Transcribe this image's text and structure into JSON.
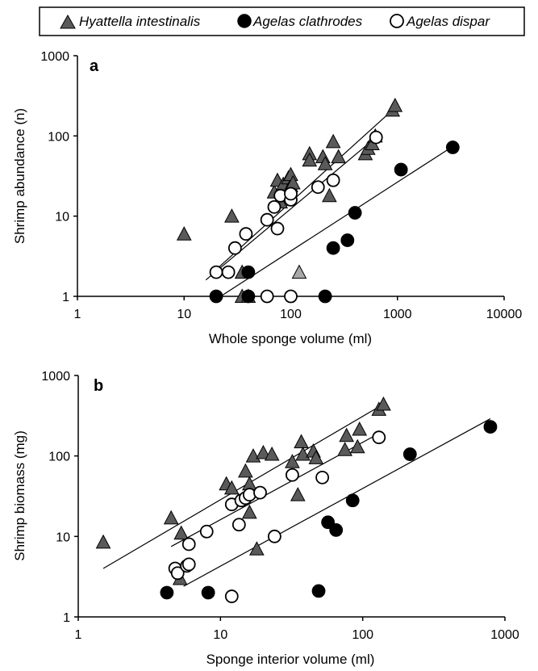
{
  "legend": [
    {
      "name": "Hyattella intestinalis",
      "marker": "triangle",
      "fill": "#5a5a5a"
    },
    {
      "name": "Agelas clathrodes",
      "marker": "circle",
      "fill": "#000000"
    },
    {
      "name": "Agelas dispar",
      "marker": "circle",
      "fill": "#ffffff"
    }
  ],
  "chart_data": [
    {
      "type": "scatter",
      "panel_label": "a",
      "xlabel": "Whole sponge volume (ml)",
      "ylabel": "Shrimp abundance (n)",
      "xscale": "log",
      "yscale": "log",
      "xlim": [
        1,
        10000
      ],
      "ylim": [
        1,
        1000
      ],
      "x_ticks": [
        "1",
        "10",
        "100",
        "1000",
        "10000"
      ],
      "y_ticks": [
        "1",
        "10",
        "100",
        "1000"
      ],
      "series": [
        {
          "name": "Hyattella intestinalis",
          "marker": "triangle",
          "fill": "#5a5a5a",
          "points": [
            [
              10,
              6
            ],
            [
              28,
              10
            ],
            [
              35,
              2
            ],
            [
              35,
              1
            ],
            [
              40,
              1
            ],
            [
              70,
              20
            ],
            [
              75,
              28
            ],
            [
              80,
              15
            ],
            [
              85,
              25
            ],
            [
              95,
              30
            ],
            [
              100,
              24
            ],
            [
              100,
              33
            ],
            [
              105,
              26
            ],
            [
              150,
              60
            ],
            [
              150,
              50
            ],
            [
              200,
              55
            ],
            [
              210,
              45
            ],
            [
              230,
              18
            ],
            [
              250,
              85
            ],
            [
              280,
              55
            ],
            [
              500,
              60
            ],
            [
              530,
              70
            ],
            [
              580,
              80
            ],
            [
              620,
              100
            ],
            [
              900,
              210
            ],
            [
              950,
              240
            ]
          ],
          "fit": [
            [
              18,
              1.9
            ],
            [
              900,
              210
            ]
          ]
        },
        {
          "name": "Agelas clathrodes",
          "marker": "circle",
          "fill": "#000000",
          "points": [
            [
              20,
              1
            ],
            [
              40,
              2
            ],
            [
              40,
              1
            ],
            [
              210,
              1
            ],
            [
              250,
              4
            ],
            [
              340,
              5
            ],
            [
              400,
              11
            ],
            [
              1080,
              38
            ],
            [
              3300,
              72
            ]
          ],
          "fit": [
            [
              22,
              1
            ],
            [
              3300,
              74
            ]
          ]
        },
        {
          "name": "Agelas dispar",
          "marker": "circle",
          "fill": "#ffffff",
          "points": [
            [
              20,
              2
            ],
            [
              26,
              2
            ],
            [
              30,
              4
            ],
            [
              38,
              6
            ],
            [
              60,
              1
            ],
            [
              60,
              9
            ],
            [
              70,
              13
            ],
            [
              75,
              7
            ],
            [
              80,
              18
            ],
            [
              100,
              1
            ],
            [
              100,
              16
            ],
            [
              100,
              19
            ],
            [
              180,
              23
            ],
            [
              250,
              28
            ],
            [
              630,
              96
            ]
          ],
          "outlier": {
            "marker": "triangle",
            "fill": "#a8a8a8",
            "point": [
              120,
              2
            ]
          },
          "fit": [
            [
              16,
              1.6
            ],
            [
              630,
              96
            ]
          ]
        }
      ]
    },
    {
      "type": "scatter",
      "panel_label": "b",
      "xlabel": "Sponge interior volume (ml)",
      "ylabel": "Shrimp biomass (mg)",
      "xscale": "log",
      "yscale": "log",
      "xlim": [
        1,
        1000
      ],
      "ylim": [
        1,
        1000
      ],
      "x_ticks": [
        "1",
        "10",
        "100",
        "1000"
      ],
      "y_ticks": [
        "1",
        "10",
        "100",
        "1000"
      ],
      "series": [
        {
          "name": "Hyattella intestinalis",
          "marker": "triangle",
          "fill": "#5a5a5a",
          "points": [
            [
              1.5,
              8.5
            ],
            [
              4.5,
              17
            ],
            [
              5.2,
              3
            ],
            [
              5.3,
              11
            ],
            [
              11,
              45
            ],
            [
              12,
              40
            ],
            [
              15,
              65
            ],
            [
              16,
              45
            ],
            [
              16,
              20
            ],
            [
              17,
              100
            ],
            [
              18,
              7
            ],
            [
              20,
              110
            ],
            [
              23,
              105
            ],
            [
              32,
              85
            ],
            [
              35,
              33
            ],
            [
              37,
              150
            ],
            [
              38,
              105
            ],
            [
              45,
              115
            ],
            [
              47,
              95
            ],
            [
              75,
              120
            ],
            [
              77,
              180
            ],
            [
              92,
              130
            ],
            [
              95,
              215
            ],
            [
              130,
              380
            ],
            [
              140,
              440
            ]
          ],
          "fit": [
            [
              1.5,
              4
            ],
            [
              140,
              440
            ]
          ]
        },
        {
          "name": "Agelas clathrodes",
          "marker": "circle",
          "fill": "#000000",
          "points": [
            [
              4.2,
              2
            ],
            [
              8.2,
              2
            ],
            [
              49,
              2.1
            ],
            [
              57,
              15
            ],
            [
              65,
              12
            ],
            [
              85,
              28
            ],
            [
              215,
              105
            ],
            [
              790,
              230
            ]
          ],
          "fit": [
            [
              5.5,
              2.4
            ],
            [
              790,
              290
            ]
          ]
        },
        {
          "name": "Agelas dispar",
          "marker": "circle",
          "fill": "#ffffff",
          "points": [
            [
              4.8,
              4
            ],
            [
              5,
              3.5
            ],
            [
              5.8,
              4.3
            ],
            [
              6,
              4.5
            ],
            [
              6,
              8
            ],
            [
              8,
              11.5
            ],
            [
              12,
              1.8
            ],
            [
              12,
              25
            ],
            [
              13.5,
              14
            ],
            [
              14,
              28
            ],
            [
              15,
              30
            ],
            [
              16,
              33
            ],
            [
              19,
              35
            ],
            [
              24,
              10
            ],
            [
              32,
              58
            ],
            [
              52,
              54
            ],
            [
              130,
              170
            ]
          ],
          "fit": [
            [
              4.5,
              7.5
            ],
            [
              130,
              190
            ]
          ]
        }
      ]
    }
  ]
}
